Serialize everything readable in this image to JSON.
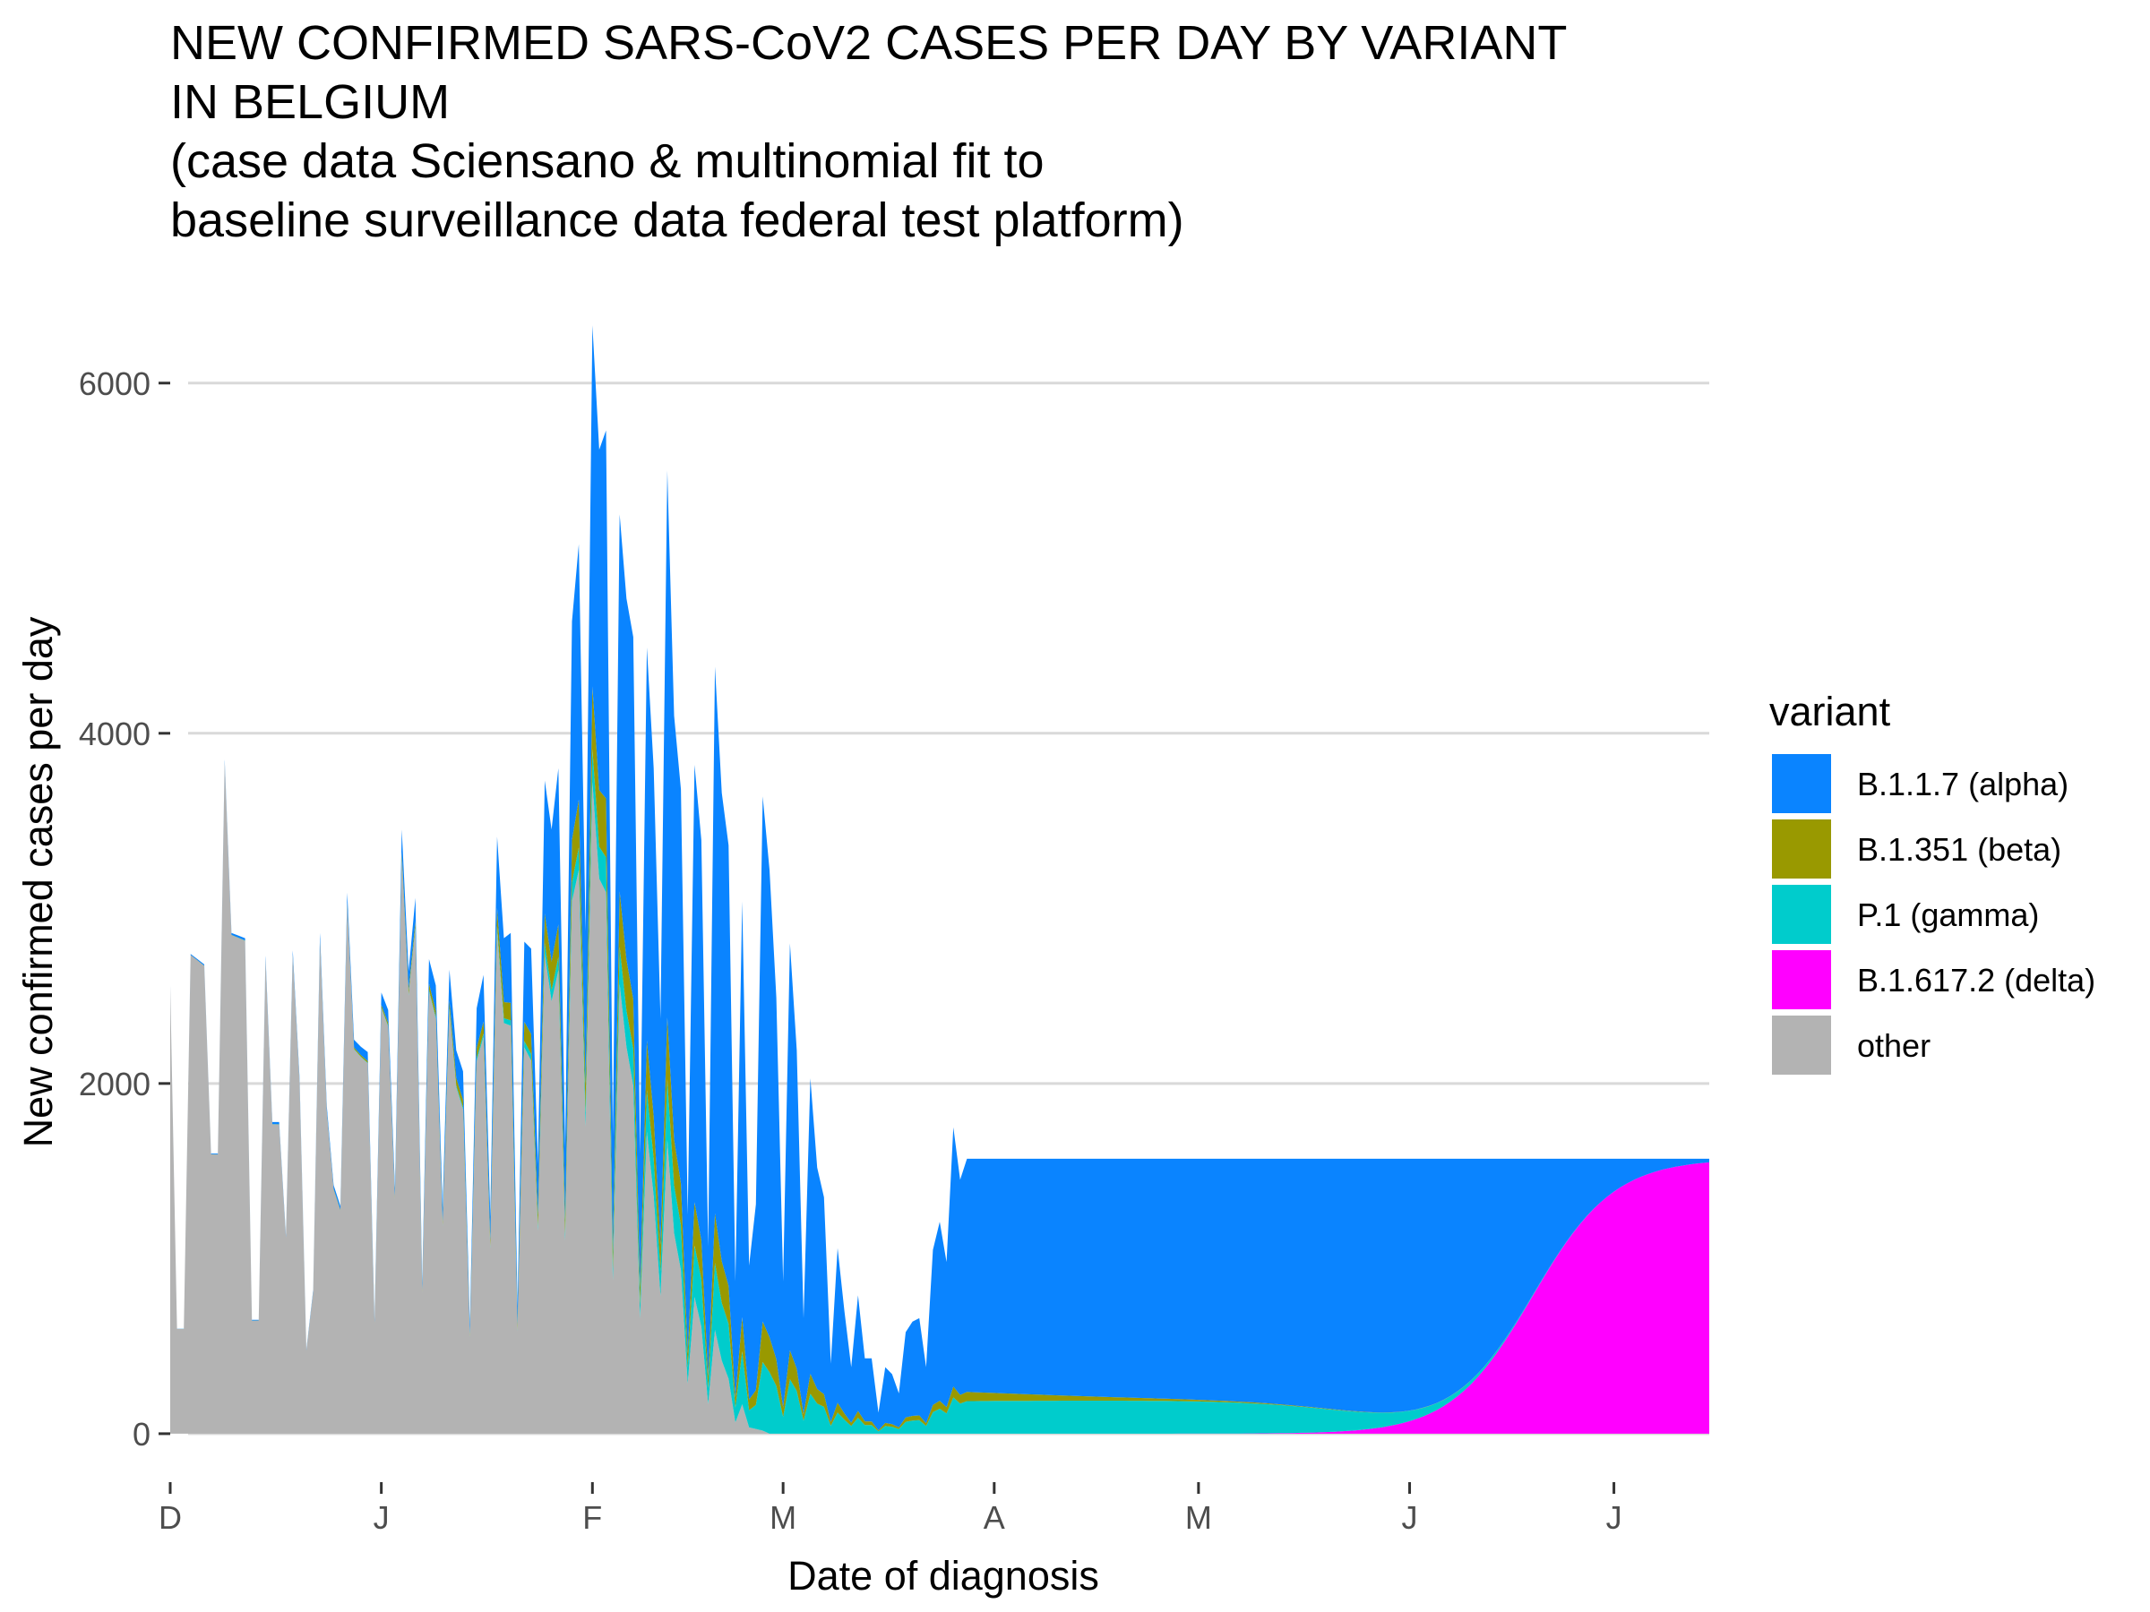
{
  "chart_data": {
    "type": "area",
    "stacked": true,
    "title_lines": [
      "NEW CONFIRMED SARS-CoV2 CASES PER DAY BY VARIANT",
      "IN BELGIUM",
      "(case data Sciensano & multinomial fit to",
      "baseline surveillance data federal test platform)"
    ],
    "xlabel": "Date of diagnosis",
    "ylabel": "New confirmed cases per day",
    "x_tick_labels": [
      "D",
      "J",
      "F",
      "M",
      "A",
      "M",
      "J",
      "J"
    ],
    "x_tick_dates": [
      "2020-12-01",
      "2021-01-01",
      "2021-02-01",
      "2021-03-01",
      "2021-04-01",
      "2021-05-01",
      "2021-06-01",
      "2021-07-01"
    ],
    "x_range": [
      "2020-12-01",
      "2021-07-15"
    ],
    "y_ticks": [
      0,
      2000,
      4000,
      6000
    ],
    "y_tick_labels": [
      "0",
      "2000",
      "4000",
      "6000"
    ],
    "ylim": [
      -200,
      6500
    ],
    "grid": "horizontal major lines",
    "legend": {
      "title": "variant",
      "placement": "right",
      "entries": [
        {
          "label": "B.1.1.7 (alpha)",
          "color": "#0a84ff"
        },
        {
          "label": "B.1.351 (beta)",
          "color": "#999900"
        },
        {
          "label": "P.1 (gamma)",
          "color": "#00cccc"
        },
        {
          "label": "B.1.617.2 (delta)",
          "color": "#ff00ff"
        },
        {
          "label": "other",
          "color": "#b3b3b3"
        }
      ]
    },
    "total_cases_keypoints": [
      [
        "2020-12-01",
        2560
      ],
      [
        "2020-12-02",
        600
      ],
      [
        "2020-12-03",
        600
      ],
      [
        "2020-12-04",
        2740
      ],
      [
        "2020-12-06",
        2680
      ],
      [
        "2020-12-07",
        1600
      ],
      [
        "2020-12-08",
        1600
      ],
      [
        "2020-12-09",
        3850
      ],
      [
        "2020-12-10",
        2860
      ],
      [
        "2020-12-12",
        2830
      ],
      [
        "2020-12-13",
        650
      ],
      [
        "2020-12-14",
        650
      ],
      [
        "2020-12-15",
        2730
      ],
      [
        "2020-12-16",
        1780
      ],
      [
        "2020-12-17",
        1780
      ],
      [
        "2020-12-18",
        1130
      ],
      [
        "2020-12-19",
        2760
      ],
      [
        "2020-12-20",
        2030
      ],
      [
        "2020-12-21",
        480
      ],
      [
        "2020-12-22",
        820
      ],
      [
        "2020-12-23",
        2860
      ],
      [
        "2020-12-24",
        1870
      ],
      [
        "2020-12-25",
        1420
      ],
      [
        "2020-12-26",
        1300
      ],
      [
        "2020-12-27",
        3090
      ],
      [
        "2020-12-28",
        2250
      ],
      [
        "2020-12-29",
        2210
      ],
      [
        "2020-12-30",
        2180
      ],
      [
        "2020-12-31",
        650
      ],
      [
        "2021-01-01",
        2520
      ],
      [
        "2021-01-02",
        2420
      ],
      [
        "2021-01-03",
        1400
      ],
      [
        "2021-01-04",
        3450
      ],
      [
        "2021-01-05",
        2640
      ],
      [
        "2021-01-06",
        3060
      ],
      [
        "2021-01-07",
        860
      ],
      [
        "2021-01-08",
        2710
      ],
      [
        "2021-01-09",
        2560
      ],
      [
        "2021-01-10",
        1290
      ],
      [
        "2021-01-11",
        2650
      ],
      [
        "2021-01-12",
        2190
      ],
      [
        "2021-01-13",
        2070
      ],
      [
        "2021-01-14",
        620
      ],
      [
        "2021-01-15",
        2430
      ],
      [
        "2021-01-16",
        2620
      ],
      [
        "2021-01-17",
        1240
      ],
      [
        "2021-01-18",
        3410
      ],
      [
        "2021-01-19",
        2830
      ],
      [
        "2021-01-20",
        2860
      ],
      [
        "2021-01-21",
        730
      ],
      [
        "2021-01-22",
        2810
      ],
      [
        "2021-01-23",
        2770
      ],
      [
        "2021-01-24",
        1540
      ],
      [
        "2021-01-25",
        3730
      ],
      [
        "2021-01-26",
        3450
      ],
      [
        "2021-01-27",
        3800
      ],
      [
        "2021-01-28",
        1630
      ],
      [
        "2021-01-29",
        4640
      ],
      [
        "2021-01-30",
        5080
      ],
      [
        "2021-01-31",
        2870
      ],
      [
        "2021-02-01",
        6330
      ],
      [
        "2021-02-02",
        5620
      ],
      [
        "2021-02-03",
        5730
      ],
      [
        "2021-02-04",
        1700
      ],
      [
        "2021-02-05",
        5250
      ],
      [
        "2021-02-06",
        4770
      ],
      [
        "2021-02-07",
        4550
      ],
      [
        "2021-02-08",
        1600
      ],
      [
        "2021-02-09",
        4490
      ],
      [
        "2021-02-10",
        3800
      ],
      [
        "2021-02-11",
        2370
      ],
      [
        "2021-02-12",
        5500
      ],
      [
        "2021-02-13",
        4100
      ],
      [
        "2021-02-14",
        3680
      ],
      [
        "2021-02-15",
        1250
      ],
      [
        "2021-02-16",
        3820
      ],
      [
        "2021-02-17",
        3390
      ],
      [
        "2021-02-18",
        1070
      ],
      [
        "2021-02-19",
        4380
      ],
      [
        "2021-02-20",
        3660
      ],
      [
        "2021-02-21",
        3360
      ],
      [
        "2021-02-22",
        870
      ],
      [
        "2021-02-23",
        3040
      ],
      [
        "2021-02-24",
        960
      ],
      [
        "2021-02-25",
        1310
      ],
      [
        "2021-02-26",
        3640
      ],
      [
        "2021-02-27",
        3220
      ],
      [
        "2021-02-28",
        2490
      ],
      [
        "2021-03-01",
        870
      ],
      [
        "2021-03-02",
        2800
      ],
      [
        "2021-03-03",
        2190
      ],
      [
        "2021-03-04",
        660
      ],
      [
        "2021-03-05",
        2030
      ],
      [
        "2021-03-06",
        1520
      ],
      [
        "2021-03-07",
        1350
      ],
      [
        "2021-03-08",
        400
      ],
      [
        "2021-03-09",
        1060
      ],
      [
        "2021-03-10",
        700
      ],
      [
        "2021-03-11",
        380
      ],
      [
        "2021-03-12",
        790
      ],
      [
        "2021-03-13",
        430
      ],
      [
        "2021-03-14",
        430
      ],
      [
        "2021-03-15",
        120
      ],
      [
        "2021-03-16",
        380
      ],
      [
        "2021-03-17",
        340
      ],
      [
        "2021-03-18",
        230
      ],
      [
        "2021-03-19",
        580
      ],
      [
        "2021-03-20",
        640
      ],
      [
        "2021-03-21",
        660
      ],
      [
        "2021-03-22",
        380
      ],
      [
        "2021-03-23",
        1050
      ],
      [
        "2021-03-24",
        1210
      ],
      [
        "2021-03-25",
        980
      ],
      [
        "2021-03-26",
        1750
      ],
      [
        "2021-03-27",
        1450
      ],
      [
        "2021-03-28",
        1570
      ]
    ],
    "note": "data-unit values reconstructed from the plot; see series arrays generated in script"
  }
}
